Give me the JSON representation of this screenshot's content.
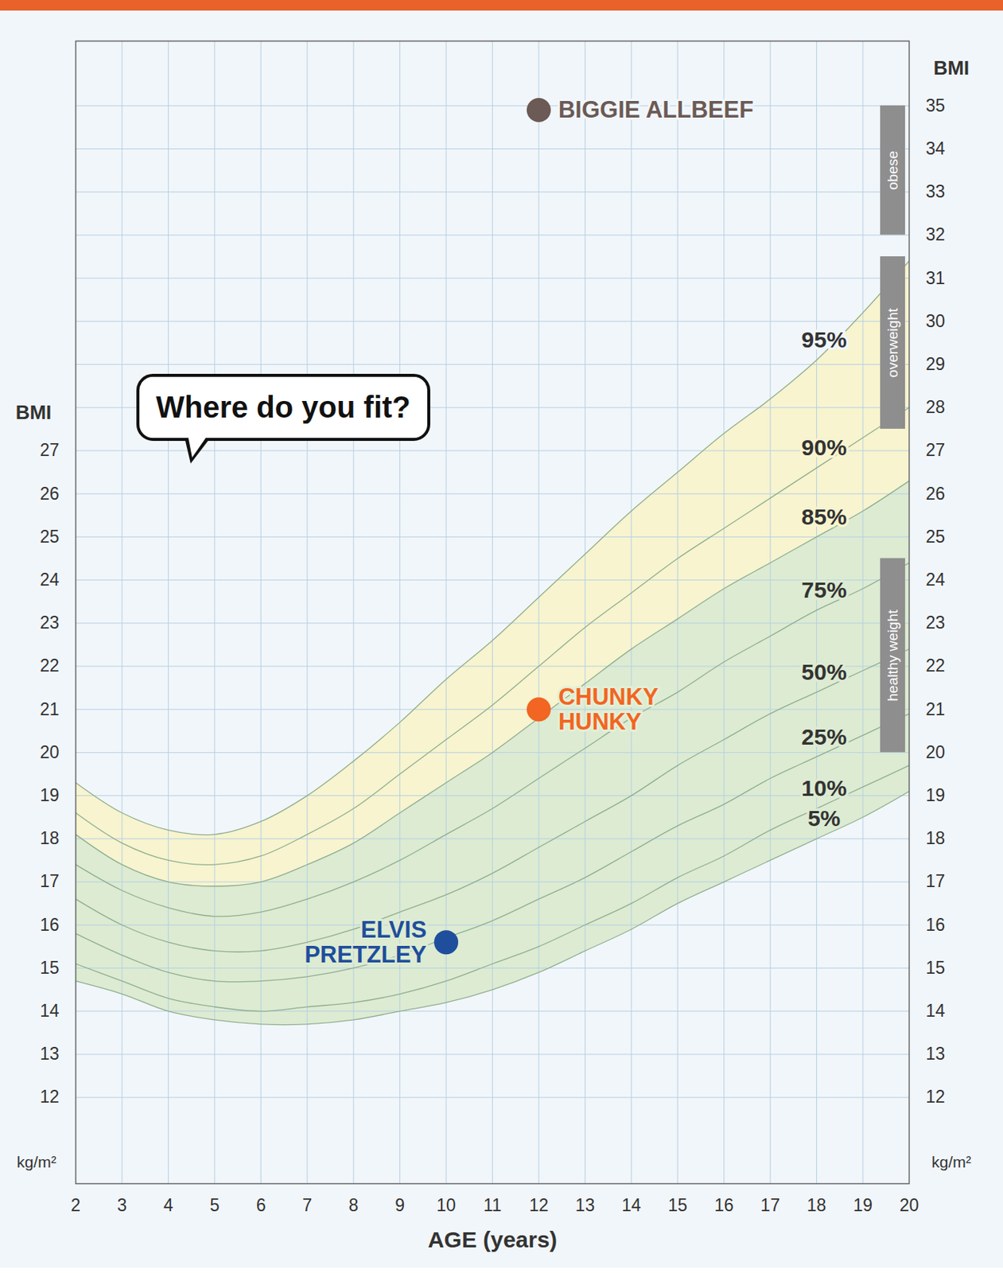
{
  "chart_data": {
    "type": "line",
    "x": [
      2,
      3,
      4,
      5,
      6,
      7,
      8,
      9,
      10,
      11,
      12,
      13,
      14,
      15,
      16,
      17,
      18,
      19,
      20
    ],
    "series": [
      {
        "name": "5%",
        "color": "#8fae8f",
        "values": [
          14.7,
          14.4,
          14.0,
          13.8,
          13.7,
          13.7,
          13.8,
          14.0,
          14.2,
          14.5,
          14.9,
          15.4,
          15.9,
          16.5,
          17.0,
          17.5,
          18.0,
          18.5,
          19.1
        ]
      },
      {
        "name": "10%",
        "color": "#8fae8f",
        "values": [
          15.1,
          14.7,
          14.3,
          14.1,
          14.0,
          14.1,
          14.2,
          14.4,
          14.7,
          15.1,
          15.5,
          16.0,
          16.5,
          17.1,
          17.6,
          18.2,
          18.7,
          19.2,
          19.7
        ]
      },
      {
        "name": "25%",
        "color": "#8fae8f",
        "values": [
          15.8,
          15.3,
          14.9,
          14.7,
          14.7,
          14.8,
          15.0,
          15.3,
          15.7,
          16.1,
          16.6,
          17.1,
          17.7,
          18.3,
          18.8,
          19.4,
          19.9,
          20.4,
          20.9
        ]
      },
      {
        "name": "50%",
        "color": "#8fae8f",
        "values": [
          16.6,
          16.0,
          15.6,
          15.4,
          15.4,
          15.6,
          15.9,
          16.3,
          16.7,
          17.2,
          17.8,
          18.4,
          19.0,
          19.7,
          20.3,
          20.9,
          21.4,
          21.9,
          22.4
        ]
      },
      {
        "name": "75%",
        "color": "#8fae8f",
        "values": [
          17.4,
          16.8,
          16.4,
          16.2,
          16.3,
          16.6,
          17.0,
          17.5,
          18.1,
          18.7,
          19.4,
          20.1,
          20.8,
          21.4,
          22.1,
          22.7,
          23.3,
          23.8,
          24.4
        ]
      },
      {
        "name": "85%",
        "color": "#8fae8f",
        "values": [
          18.1,
          17.4,
          17.0,
          16.9,
          17.0,
          17.4,
          17.9,
          18.6,
          19.3,
          20.0,
          20.8,
          21.6,
          22.4,
          23.1,
          23.8,
          24.4,
          25.0,
          25.6,
          26.3
        ]
      },
      {
        "name": "90%",
        "color": "#8fae8f",
        "values": [
          18.6,
          17.9,
          17.5,
          17.4,
          17.6,
          18.1,
          18.7,
          19.5,
          20.3,
          21.1,
          22.0,
          22.9,
          23.7,
          24.5,
          25.2,
          25.9,
          26.6,
          27.3,
          28.0
        ]
      },
      {
        "name": "95%",
        "color": "#8fae8f",
        "values": [
          19.3,
          18.6,
          18.2,
          18.1,
          18.4,
          19.0,
          19.8,
          20.7,
          21.7,
          22.6,
          23.6,
          24.6,
          25.6,
          26.5,
          27.4,
          28.2,
          29.1,
          30.2,
          31.4
        ]
      }
    ],
    "bands": [
      {
        "from": "5%",
        "to": "85%",
        "color": "#dcebd2"
      },
      {
        "from": "85%",
        "to": "95%",
        "color": "#f7f4cf"
      }
    ],
    "points": [
      {
        "name": "BIGGIE ALLBEEF",
        "x": 12,
        "y": 34.9,
        "color": "#6b5a55"
      },
      {
        "name": "CHUNKY\nHUNKY",
        "x": 12,
        "y": 21.0,
        "color": "#f26522"
      },
      {
        "name": "ELVIS\nPRETZLEY",
        "x": 10,
        "y": 15.6,
        "color": "#1f4e9c"
      }
    ],
    "zones": [
      {
        "label": "obese",
        "ymin": 32,
        "ymax": 35
      },
      {
        "label": "overweight",
        "ymin": 27.5,
        "ymax": 31.5
      },
      {
        "label": "healthy weight",
        "ymin": 20,
        "ymax": 24.5
      }
    ],
    "annotations": [
      "Where do you fit?"
    ],
    "xlabel": "AGE (years)",
    "ylabel": "BMI",
    "y2label": "BMI",
    "unit": "kg/m²",
    "xlim": [
      2,
      20
    ],
    "xticks": [
      2,
      3,
      4,
      5,
      6,
      7,
      8,
      9,
      10,
      11,
      12,
      13,
      14,
      15,
      16,
      17,
      18,
      19,
      20
    ],
    "ylim": [
      10,
      36.5
    ],
    "yticks": [
      12,
      13,
      14,
      15,
      16,
      17,
      18,
      19,
      20,
      21,
      22,
      23,
      24,
      25,
      26,
      27
    ],
    "y2lim": [
      10,
      36.5
    ],
    "y2ticks": [
      12,
      13,
      14,
      15,
      16,
      17,
      18,
      19,
      20,
      21,
      22,
      23,
      24,
      25,
      26,
      27,
      28,
      29,
      30,
      31,
      32,
      33,
      34,
      35
    ],
    "grid": true
  }
}
